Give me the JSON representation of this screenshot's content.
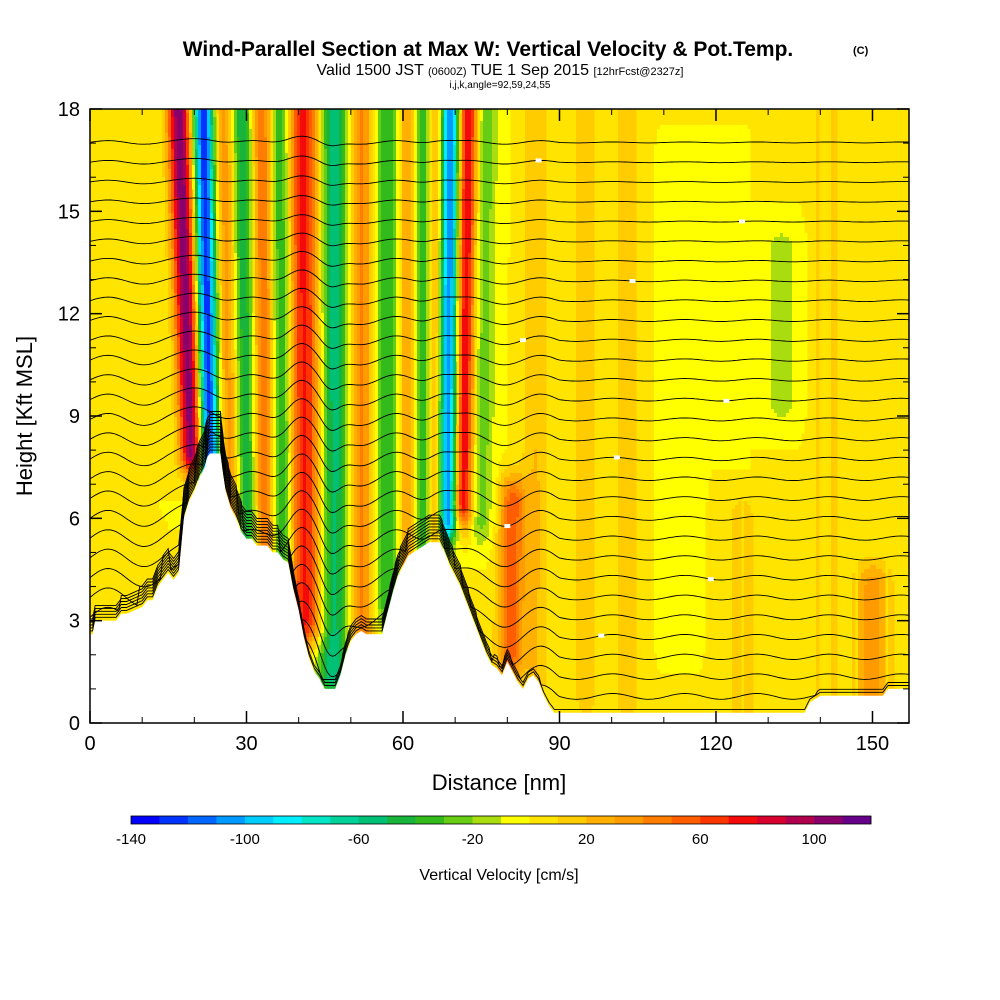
{
  "title": {
    "main": "Wind-Parallel Section at Max W: Vertical Velocity & Pot.Temp.",
    "main_tag": "(C)",
    "sub_a": "Valid 1500 JST",
    "sub_b": "(0600Z)",
    "sub_c": "TUE 1 Sep 2015",
    "sub_d": "[12hrFcst@2327z]",
    "sub2": "i,j,k,angle=92,59,24,55"
  },
  "chart_data": {
    "type": "heatmap",
    "xlabel": "Distance [nm]",
    "ylabel": "Height [Kft MSL]",
    "xlim": [
      0,
      157
    ],
    "ylim": [
      0,
      18
    ],
    "xticks": [
      "0",
      "30",
      "60",
      "90",
      "120",
      "150"
    ],
    "yticks": [
      "0",
      "3",
      "6",
      "9",
      "12",
      "15",
      "18"
    ],
    "grid": false,
    "colorbar": {
      "label": "Vertical Velocity [cm/s]",
      "ticks": [
        "-140",
        "-100",
        "-60",
        "-20",
        "20",
        "60",
        "100"
      ],
      "range": [
        -140,
        120
      ],
      "step": 10,
      "colors": [
        "#0000ff",
        "#0033ff",
        "#0066ff",
        "#0099ff",
        "#00ccff",
        "#00eeff",
        "#00e5c6",
        "#00d29a",
        "#00c076",
        "#18b43c",
        "#33bb1c",
        "#66cc14",
        "#aadd10",
        "#ffff00",
        "#ffe400",
        "#ffcc00",
        "#ffb000",
        "#ff9a00",
        "#ff7d00",
        "#ff5e00",
        "#ff3500",
        "#f40a0a",
        "#d8002e",
        "#b0004e",
        "#8a006a",
        "#66008a"
      ]
    },
    "terrain": {
      "x": [
        0,
        0.5,
        1,
        5,
        6,
        7,
        10,
        11,
        12,
        13,
        14,
        15,
        16,
        17,
        18,
        19,
        20,
        21,
        22,
        22.5,
        23,
        25,
        25.5,
        26,
        27,
        28,
        29,
        30,
        31,
        32,
        33,
        34,
        35,
        36,
        37,
        38,
        39,
        40,
        41,
        42,
        43,
        44,
        45,
        46,
        47,
        48,
        49,
        50,
        51,
        52,
        53,
        54,
        55,
        56,
        57,
        58,
        59,
        60,
        61,
        62,
        63,
        64,
        65,
        66,
        67,
        68,
        69,
        70,
        71,
        72,
        73,
        74,
        75,
        76,
        77,
        78,
        79,
        80,
        81,
        82,
        83,
        84,
        85,
        86,
        87,
        88,
        89,
        90,
        91,
        95,
        100,
        110,
        120,
        130,
        137,
        138,
        140,
        145,
        150,
        152,
        153,
        157
      ],
      "y": [
        2.6,
        2.6,
        3.0,
        3.0,
        3.2,
        3.2,
        3.4,
        3.6,
        3.6,
        4.0,
        4.2,
        4.4,
        4.2,
        4.4,
        6.0,
        6.5,
        6.8,
        7.2,
        7.5,
        7.8,
        7.9,
        7.9,
        7.3,
        6.8,
        6.3,
        6.0,
        5.6,
        5.4,
        5.4,
        5.2,
        5.2,
        5.2,
        5.0,
        5.0,
        4.8,
        4.7,
        3.9,
        3.3,
        2.5,
        1.9,
        1.5,
        1.3,
        1.0,
        1.0,
        1.0,
        1.4,
        2.0,
        2.4,
        2.6,
        2.7,
        2.6,
        2.6,
        2.6,
        2.6,
        3.2,
        3.8,
        4.3,
        4.6,
        4.9,
        5.0,
        5.1,
        5.2,
        5.3,
        5.3,
        5.3,
        5.0,
        4.6,
        4.3,
        4.0,
        3.6,
        3.2,
        2.8,
        2.4,
        2.0,
        1.7,
        1.6,
        1.4,
        1.8,
        1.5,
        1.2,
        1.0,
        1.3,
        1.4,
        1.2,
        0.8,
        0.5,
        0.3,
        0.3,
        0.3,
        0.3,
        0.3,
        0.3,
        0.3,
        0.3,
        0.3,
        0.6,
        0.8,
        0.8,
        0.8,
        0.8,
        1.0,
        1.0
      ]
    },
    "velocity_features": [
      {
        "x": 19.5,
        "y0": 8.0,
        "y1": 18,
        "width": 2.2,
        "value": 110,
        "tilt": -2.5
      },
      {
        "x": 23.0,
        "y0": 7.2,
        "y1": 18,
        "width": 2.0,
        "value": -135,
        "tilt": -1.2
      },
      {
        "x": 27.0,
        "y0": 6.0,
        "y1": 18,
        "width": 2.8,
        "value": 40,
        "tilt": -1.5
      },
      {
        "x": 30.0,
        "y0": 5.5,
        "y1": 18,
        "width": 2.0,
        "value": -60,
        "tilt": -1.0
      },
      {
        "x": 33.5,
        "y0": 5.4,
        "y1": 18,
        "width": 2.2,
        "value": 50,
        "tilt": -0.5
      },
      {
        "x": 37.0,
        "y0": 5.0,
        "y1": 18,
        "width": 2.0,
        "value": -55,
        "tilt": -0.5
      },
      {
        "x": 41.5,
        "y0": 3.0,
        "y1": 18,
        "width": 3.5,
        "value": 75,
        "tilt": -0.5
      },
      {
        "x": 46.5,
        "y0": 1.5,
        "y1": 18,
        "width": 3.0,
        "value": -60,
        "tilt": 0
      },
      {
        "x": 52.0,
        "y0": 2.5,
        "y1": 18,
        "width": 2.2,
        "value": 45,
        "tilt": 0
      },
      {
        "x": 57.0,
        "y0": 3.5,
        "y1": 18,
        "width": 2.2,
        "value": -40,
        "tilt": 0
      },
      {
        "x": 61.0,
        "y0": 4.8,
        "y1": 18,
        "width": 1.8,
        "value": 35,
        "tilt": 0
      },
      {
        "x": 63.5,
        "y0": 5.2,
        "y1": 18,
        "width": 1.6,
        "value": -45,
        "tilt": 0
      },
      {
        "x": 66.5,
        "y0": 5.5,
        "y1": 18,
        "width": 1.8,
        "value": 35,
        "tilt": 0
      },
      {
        "x": 68.5,
        "y0": 6.0,
        "y1": 18,
        "width": 1.8,
        "value": -120,
        "tilt": 0.5
      },
      {
        "x": 71.5,
        "y0": 6.5,
        "y1": 18,
        "width": 1.8,
        "value": 85,
        "tilt": 1.0
      },
      {
        "x": 75.0,
        "y0": 6.0,
        "y1": 18,
        "width": 2.2,
        "value": -25,
        "tilt": 1.0
      },
      {
        "x": 80.5,
        "y0": 2.0,
        "y1": 6.5,
        "width": 2.5,
        "value": 55,
        "tilt": 0.5
      },
      {
        "x": 85.5,
        "y0": 1.5,
        "y1": 18,
        "width": 2.6,
        "value": 20,
        "tilt": 0
      },
      {
        "x": 95.0,
        "y0": 0.8,
        "y1": 18,
        "width": 2.5,
        "value": 15,
        "tilt": 0
      },
      {
        "x": 103.0,
        "y0": 0.8,
        "y1": 18,
        "width": 2.5,
        "value": 18,
        "tilt": 0
      },
      {
        "x": 112.5,
        "y0": 3.0,
        "y1": 16,
        "width": 2.5,
        "value": -10,
        "tilt": 0
      },
      {
        "x": 125.0,
        "y0": 0.5,
        "y1": 6.0,
        "width": 3.0,
        "value": 15,
        "tilt": 0
      },
      {
        "x": 132.5,
        "y0": 9.5,
        "y1": 13.8,
        "width": 3.5,
        "value": -15,
        "tilt": 0
      },
      {
        "x": 141.0,
        "y0": 0.5,
        "y1": 18,
        "width": 2.5,
        "value": 18,
        "tilt": 0
      },
      {
        "x": 150.0,
        "y0": 0.5,
        "y1": 4.0,
        "width": 3.5,
        "value": 35,
        "tilt": 0
      }
    ],
    "theta_contours": {
      "count": 30,
      "bottom_kft": 0.2,
      "spacing_kft": 0.58,
      "wave_kft": [
        0.8,
        1.4,
        1.0,
        0.6
      ],
      "labels_visible": true
    }
  }
}
